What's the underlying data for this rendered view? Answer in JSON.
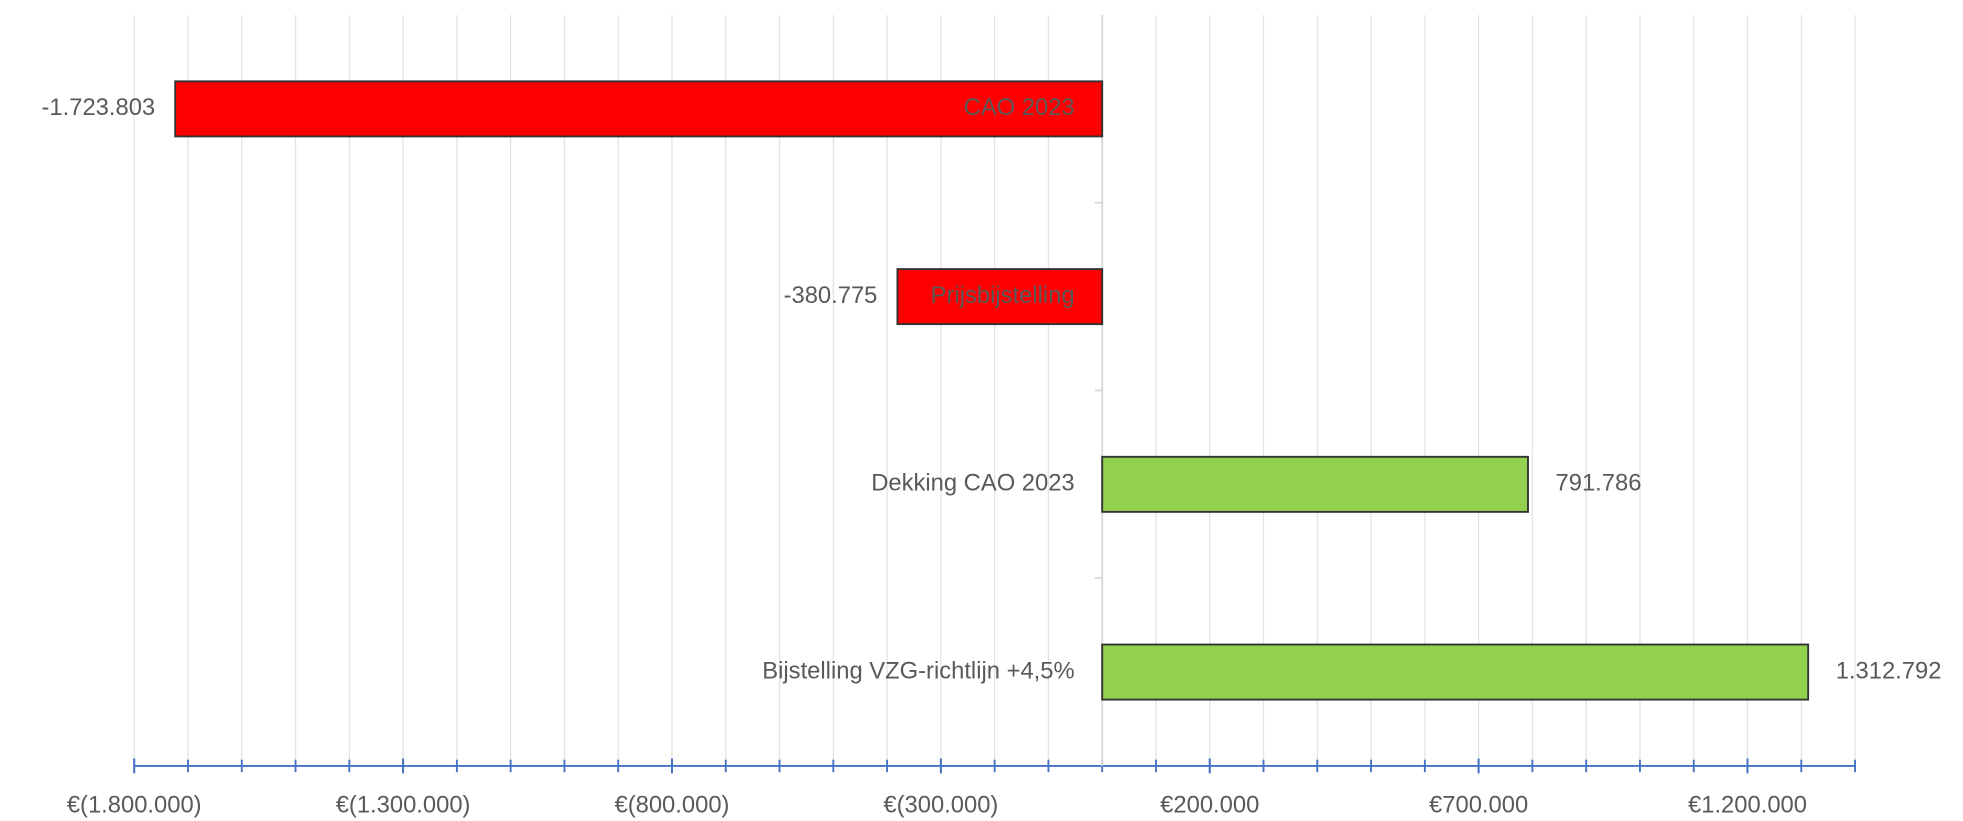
{
  "chart_data": {
    "type": "bar",
    "orientation": "horizontal",
    "categories": [
      "CAO 2023",
      "Prijsbijstelling",
      "Dekking CAO 2023",
      "Bijstelling VZG-richtlijn +4,5%"
    ],
    "values": [
      -1723803,
      -380775,
      791786,
      1312792
    ],
    "value_labels": [
      "-1.723.803",
      "-380.775",
      "791.786",
      "1.312.792"
    ],
    "colors": [
      "#ff0000",
      "#ff0000",
      "#92d050",
      "#92d050"
    ],
    "xlim": [
      -1800000,
      1400000
    ],
    "xticks": [
      {
        "value": -1800000,
        "label": "€(1.800.000)"
      },
      {
        "value": -1300000,
        "label": "€(1.300.000)"
      },
      {
        "value": -800000,
        "label": "€(800.000)"
      },
      {
        "value": -300000,
        "label": "€(300.000)"
      },
      {
        "value": 200000,
        "label": "€200.000"
      },
      {
        "value": 700000,
        "label": "€700.000"
      },
      {
        "value": 1200000,
        "label": "€1.200.000"
      }
    ],
    "xminor_ticks": [
      -1800000,
      -1700000,
      -1600000,
      -1500000,
      -1400000,
      -1300000,
      -1200000,
      -1100000,
      -1000000,
      -900000,
      -800000,
      -700000,
      -600000,
      -500000,
      -400000,
      -300000,
      -200000,
      -100000,
      0,
      100000,
      200000,
      300000,
      400000,
      500000,
      600000,
      700000,
      800000,
      900000,
      1000000,
      1100000,
      1200000,
      1300000,
      1400000
    ],
    "grid": true
  }
}
